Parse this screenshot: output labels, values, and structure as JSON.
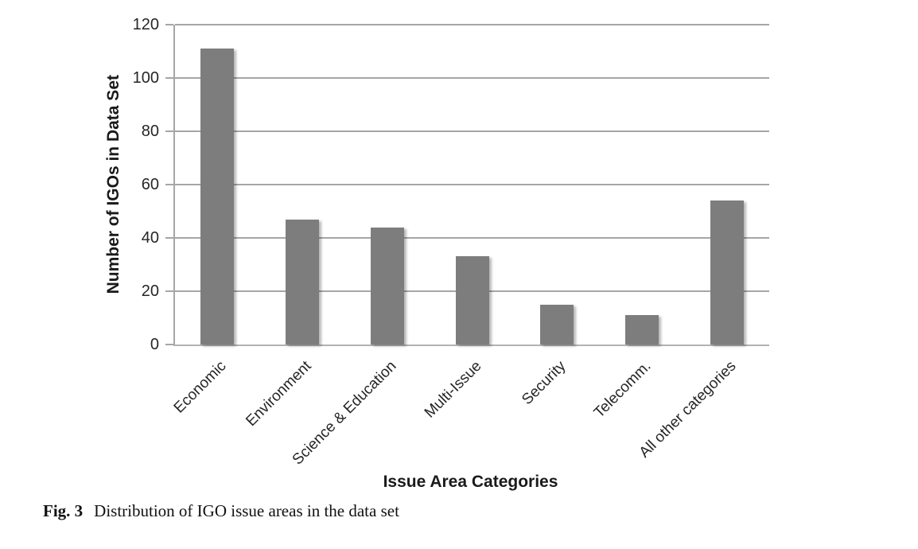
{
  "chart_data": {
    "type": "bar",
    "title": "",
    "categories": [
      "Economic",
      "Environment",
      "Science & Education",
      "Multi-Issue",
      "Security",
      "Telecomm.",
      "All other categories"
    ],
    "values": [
      111,
      47,
      44,
      33,
      15,
      11,
      54
    ],
    "xlabel": "Issue Area Categories",
    "ylabel": "Number of IGOs in Data Set",
    "ylim": [
      0,
      120
    ],
    "yticks": [
      0,
      20,
      40,
      60,
      80,
      100,
      120
    ],
    "grid": true,
    "legend_position": "none",
    "bar_color": "#7d7d7d",
    "gridline_color": "#a6a6a6"
  },
  "caption": {
    "label": "Fig. 3",
    "text": "Distribution of IGO issue areas in the data set"
  }
}
